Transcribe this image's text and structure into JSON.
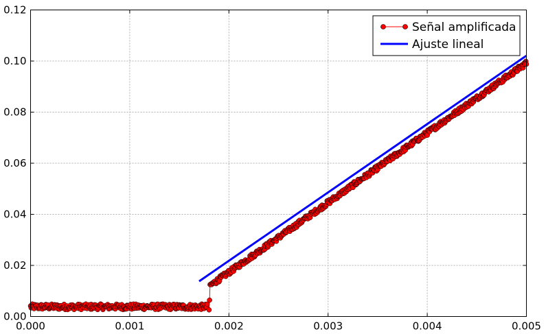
{
  "chart_data": {
    "type": "scatter",
    "title": "",
    "xlabel": "",
    "ylabel": "",
    "xlim": [
      0.0,
      0.005
    ],
    "ylim": [
      0.0,
      0.12
    ],
    "xticks": [
      "0.000",
      "0.001",
      "0.002",
      "0.003",
      "0.004",
      "0.005"
    ],
    "yticks": [
      "0.00",
      "0.02",
      "0.04",
      "0.06",
      "0.08",
      "0.10",
      "0.12"
    ],
    "grid": true,
    "legend_position": "top-right",
    "series": [
      {
        "name": "Señal amplificada",
        "kind": "line+markers",
        "color": "#ff0000",
        "marker_edge": "#000000",
        "segments": [
          {
            "x_start": 0.0,
            "x_end": 0.00178,
            "baseline": 0.0038,
            "noise": 0.0011
          },
          {
            "x_start": 0.00182,
            "x_end": 0.005,
            "slope": 27.3,
            "intercept": -0.0373,
            "noise": 0.001
          }
        ],
        "jump": {
          "x": 0.0018,
          "y_before": 0.0026,
          "y_peak": 0.0064,
          "y_after": 0.0125
        }
      },
      {
        "name": "Ajuste lineal",
        "kind": "line",
        "color": "#0000ff",
        "points": [
          [
            0.0017,
            0.0138
          ],
          [
            0.005,
            0.1021
          ]
        ]
      }
    ]
  }
}
